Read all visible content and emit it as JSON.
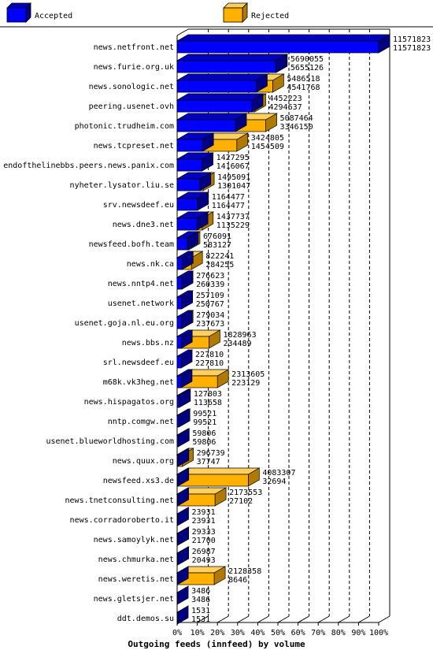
{
  "chart_data": {
    "type": "bar",
    "orientation": "horizontal",
    "stacked": "overlaid-3d",
    "title": "Outgoing feeds (innfeed) by volume",
    "legend_placement": "top",
    "series": [
      {
        "name": "Accepted",
        "color": "#0000ff"
      },
      {
        "name": "Rejected",
        "color": "#ffb000"
      }
    ],
    "x_ticks": [
      "0%",
      "10%",
      "20%",
      "30%",
      "40%",
      "50%",
      "60%",
      "70%",
      "80%",
      "90%",
      "100%"
    ],
    "xlim": [
      0,
      100
    ],
    "max_value": 11571823,
    "grid": true,
    "categories": [
      "news.netfront.net",
      "news.furie.org.uk",
      "news.sonologic.net",
      "peering.usenet.ovh",
      "photonic.trudheim.com",
      "news.tcpreset.net",
      "endofthelinebbs.peers.news.panix.com",
      "nyheter.lysator.liu.se",
      "srv.newsdeef.eu",
      "news.dne3.net",
      "newsfeed.bofh.team",
      "news.nk.ca",
      "news.nntp4.net",
      "usenet.network",
      "usenet.goja.nl.eu.org",
      "news.bbs.nz",
      "srl.newsdeef.eu",
      "m68k.vk3heg.net",
      "news.hispagatos.org",
      "nntp.comgw.net",
      "usenet.blueworldhosting.com",
      "news.quux.org",
      "newsfeed.xs3.de",
      "news.tnetconsulting.net",
      "news.corradoroberto.it",
      "news.samoylyk.net",
      "news.chmurka.net",
      "news.weretis.net",
      "news.gletsjer.net",
      "ddt.demos.su"
    ],
    "offered": [
      11571823,
      5690055,
      5486518,
      4452223,
      5087464,
      3424805,
      1427295,
      1495091,
      1164477,
      1437737,
      676091,
      822241,
      276623,
      257109,
      279034,
      1828963,
      227810,
      2313605,
      127803,
      99521,
      59806,
      296739,
      4083307,
      2173553,
      23931,
      29333,
      26987,
      2128358,
      3486,
      1531
    ],
    "accepted": [
      11571823,
      5655126,
      4541768,
      4294637,
      3346150,
      1454509,
      1416067,
      1301047,
      1164477,
      1135229,
      583127,
      284255,
      260339,
      250767,
      237673,
      234489,
      227810,
      223129,
      113658,
      99521,
      59806,
      37747,
      32694,
      27102,
      23931,
      21700,
      20493,
      8646,
      3486,
      1531
    ]
  }
}
